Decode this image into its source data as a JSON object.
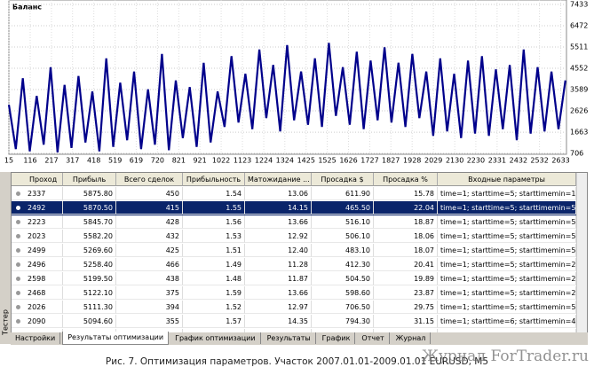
{
  "chart_data": {
    "type": "line",
    "title": "Баланс",
    "color": "#00008b",
    "grid": true,
    "x": [
      15,
      48,
      81,
      114,
      147,
      180,
      213,
      246,
      279,
      312,
      345,
      378,
      411,
      444,
      477,
      510,
      543,
      576,
      609,
      642,
      675,
      708,
      741,
      774,
      807,
      840,
      873,
      906,
      939,
      972,
      1005,
      1038,
      1071,
      1104,
      1137,
      1170,
      1203,
      1236,
      1269,
      1302,
      1335,
      1368,
      1401,
      1434,
      1467,
      1500,
      1533,
      1566,
      1599,
      1632,
      1665,
      1698,
      1731,
      1764,
      1797,
      1830,
      1863,
      1896,
      1929,
      1962,
      1995,
      2028,
      2061,
      2094,
      2127,
      2160,
      2193,
      2226,
      2259,
      2292,
      2325,
      2358,
      2391,
      2424,
      2457,
      2490,
      2523,
      2556,
      2589,
      2622,
      2655
    ],
    "values": [
      2900,
      900,
      4100,
      800,
      3300,
      1100,
      4600,
      750,
      3800,
      950,
      4200,
      1200,
      3500,
      800,
      5000,
      1000,
      3900,
      1300,
      4400,
      900,
      3600,
      1100,
      5200,
      850,
      4000,
      1400,
      3700,
      1000,
      4800,
      1200,
      3500,
      1900,
      5100,
      2100,
      4300,
      1800,
      5400,
      2300,
      4700,
      1700,
      5600,
      2200,
      4400,
      2000,
      5000,
      1900,
      5700,
      2400,
      4600,
      2000,
      5300,
      1800,
      4900,
      2200,
      5500,
      2100,
      4800,
      1900,
      5200,
      2300,
      4400,
      1500,
      5000,
      1700,
      4300,
      1400,
      4900,
      1600,
      5100,
      1500,
      4500,
      1800,
      4700,
      1300,
      5400,
      1600,
      4600,
      1700,
      4400,
      1800,
      4000
    ],
    "xlim": [
      15,
      2660
    ],
    "xticks": [
      15,
      116,
      217,
      317,
      418,
      519,
      619,
      720,
      821,
      921,
      1022,
      1123,
      1224,
      1324,
      1425,
      1525,
      1626,
      1727,
      1827,
      1928,
      2029,
      2130,
      2230,
      2331,
      2432,
      2532,
      2633
    ],
    "ylim": [
      706,
      7433
    ],
    "yticks": [
      706,
      1663,
      2626,
      3589,
      4552,
      5511,
      6472,
      7433
    ]
  },
  "table": {
    "columns": [
      "Проход",
      "Прибыль",
      "Всего сделок",
      "Прибыльность",
      "Матожидание ...",
      "Просадка $",
      "Просадка %",
      "Входные параметры"
    ],
    "rows": [
      [
        "2337",
        "5875.80",
        "450",
        "1.54",
        "13.06",
        "611.90",
        "15.78",
        "time=1; starttime=5; starttimemin=10; ..."
      ],
      [
        "2492",
        "5870.50",
        "415",
        "1.55",
        "14.15",
        "465.50",
        "22.04",
        "time=1; starttime=5; starttimemin=50; ..."
      ],
      [
        "2223",
        "5845.70",
        "428",
        "1.56",
        "13.66",
        "516.10",
        "18.87",
        "time=1; starttime=5; starttimemin=50; ..."
      ],
      [
        "2023",
        "5582.20",
        "432",
        "1.53",
        "12.92",
        "506.10",
        "18.06",
        "time=1; starttime=5; starttimemin=50; ..."
      ],
      [
        "2499",
        "5269.60",
        "425",
        "1.51",
        "12.40",
        "483.10",
        "18.07",
        "time=1; starttime=5; starttimemin=50; ..."
      ],
      [
        "2496",
        "5258.40",
        "466",
        "1.49",
        "11.28",
        "412.30",
        "20.41",
        "time=1; starttime=5; starttimemin=20; ..."
      ],
      [
        "2598",
        "5199.50",
        "438",
        "1.48",
        "11.87",
        "504.50",
        "19.89",
        "time=1; starttime=5; starttimemin=20; ..."
      ],
      [
        "2468",
        "5122.10",
        "375",
        "1.59",
        "13.66",
        "598.60",
        "23.87",
        "time=1; starttime=5; starttimemin=20; ..."
      ],
      [
        "2026",
        "5111.30",
        "394",
        "1.52",
        "12.97",
        "706.50",
        "29.75",
        "time=1; starttime=5; starttimemin=50; ..."
      ],
      [
        "2090",
        "5094.60",
        "355",
        "1.57",
        "14.35",
        "794.30",
        "31.15",
        "time=1; starttime=6; starttimemin=40; ..."
      ],
      [
        "2118",
        "5040.10",
        "526",
        "1.40",
        "9.58",
        "646.70",
        "34.52",
        "time=1; starttime=5; starttimemin=20; ..."
      ],
      [
        "2467",
        "4906.30",
        "506",
        "1.37",
        "9.70",
        "635.10",
        "36.89",
        "time=1; starttime=5; starttimemin=20; ..."
      ]
    ]
  },
  "side_label": "Тестер",
  "tabs": [
    "Настройки",
    "Результаты оптимизации",
    "График оптимизации",
    "Результаты",
    "График",
    "Отчет",
    "Журнал"
  ],
  "caption": "Рис. 7. Оптимизация параметров. Участок  2007.01.01-2009.01.01  EURUSD, M5",
  "watermark": "Журнал ForTrader.ru"
}
